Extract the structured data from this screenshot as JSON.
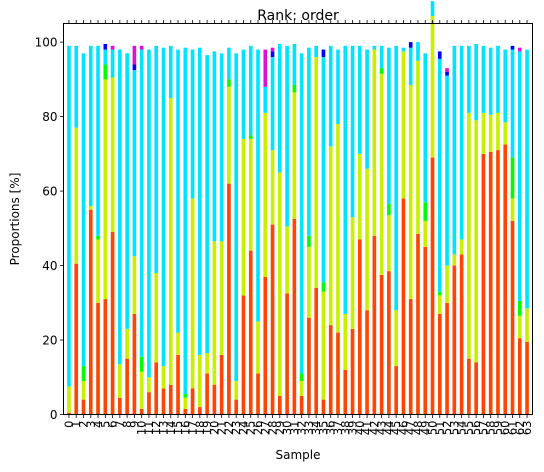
{
  "chart_data": {
    "type": "bar",
    "stacked": true,
    "title": "Rank: order",
    "xlabel": "Sample",
    "ylabel": "Proportions [%]",
    "ylim": [
      0,
      105
    ],
    "yticks": [
      "0",
      "20",
      "40",
      "60",
      "80",
      "100"
    ],
    "grid": false,
    "legend": "none",
    "categories": [
      "0",
      "1",
      "2",
      "3",
      "4",
      "5",
      "6",
      "7",
      "8",
      "9",
      "10",
      "11",
      "12",
      "13",
      "14",
      "15",
      "16",
      "17",
      "18",
      "19",
      "20",
      "21",
      "22",
      "23",
      "24",
      "25",
      "26",
      "27",
      "28",
      "29",
      "30",
      "31",
      "32",
      "33",
      "34",
      "35",
      "36",
      "37",
      "38",
      "39",
      "40",
      "41",
      "42",
      "43",
      "44",
      "45",
      "46",
      "47",
      "48",
      "49",
      "50",
      "51",
      "52",
      "53",
      "54",
      "55",
      "56",
      "57",
      "58",
      "59",
      "60",
      "61",
      "62",
      "63"
    ],
    "series": [
      {
        "color": "#ff4500",
        "values": [
          0.5,
          40.5,
          4,
          55,
          30,
          31,
          49,
          4.5,
          15,
          27,
          1.5,
          6,
          14,
          7,
          8,
          16,
          1.5,
          7,
          2,
          11,
          8,
          16,
          62,
          4,
          32,
          44,
          11,
          37,
          51,
          5,
          32.5,
          52.5,
          5,
          26,
          34,
          4,
          24,
          22,
          12,
          23,
          47,
          28,
          48,
          37.5,
          38.5,
          13,
          58,
          31,
          48.5,
          45,
          69,
          27,
          30,
          40,
          43,
          15,
          14,
          70,
          70.5,
          71,
          72.5,
          52,
          20.5,
          19.5
        ]
      },
      {
        "color": "#c8f000",
        "values": [
          7,
          36.5,
          5,
          1,
          17,
          59,
          41.5,
          9,
          8,
          15.5,
          10,
          4,
          24,
          6,
          77,
          6,
          3,
          51,
          14,
          5.5,
          38.5,
          30.5,
          26,
          5,
          42,
          30,
          14,
          44,
          20,
          60,
          18,
          34,
          4,
          19,
          62,
          29,
          48,
          56,
          15,
          30,
          23,
          38,
          50,
          54,
          15,
          15,
          39.5,
          57.5,
          46.5,
          7,
          38,
          5,
          10,
          3,
          4,
          66,
          65,
          11,
          10,
          10,
          6,
          6,
          6,
          9
        ]
      },
      {
        "color": "#00ff00",
        "values": [
          0,
          0,
          4,
          0,
          1,
          4,
          0,
          0,
          0,
          0,
          4,
          0,
          0,
          0,
          0,
          0,
          1,
          0,
          0,
          0,
          0,
          0,
          2,
          0,
          0,
          1,
          0,
          0,
          0,
          0,
          0,
          2,
          2,
          3,
          0,
          2.5,
          0,
          0,
          0,
          0,
          0,
          0,
          0,
          1.5,
          3,
          0,
          0,
          0,
          0,
          5,
          0,
          1,
          0,
          0,
          0,
          0,
          0,
          0,
          0,
          0,
          0,
          11,
          4,
          0
        ]
      },
      {
        "color": "#00e5ff",
        "values": [
          91.5,
          22,
          84,
          43,
          51,
          4,
          7.5,
          84.5,
          74,
          50,
          82.5,
          88,
          61,
          85.5,
          14,
          76,
          93,
          40,
          82.5,
          80,
          51,
          50.5,
          8.5,
          88,
          24,
          24,
          73,
          7,
          25,
          34.5,
          48.5,
          11,
          86,
          50.5,
          3,
          60.5,
          27,
          20,
          72,
          46,
          29,
          32,
          1,
          6,
          42,
          71,
          1,
          10,
          5,
          40,
          4,
          62.5,
          51,
          56,
          52,
          18,
          20.5,
          18,
          18,
          18,
          19.5,
          29,
          67,
          69.5
        ]
      },
      {
        "color": "#0000ff",
        "values": [
          0,
          0,
          0,
          0,
          0,
          1.5,
          0,
          0,
          0,
          1.5,
          0,
          0,
          0,
          0,
          0,
          0,
          0,
          0,
          0,
          0,
          0,
          0,
          0,
          0,
          0,
          0,
          0,
          0,
          1.5,
          0,
          0,
          0,
          0,
          0,
          0,
          2,
          0,
          0,
          0,
          0,
          0,
          0,
          0,
          0,
          0,
          0,
          0,
          1.5,
          0,
          0,
          0,
          2,
          1,
          0,
          0,
          0,
          0,
          0,
          0,
          0,
          0,
          1,
          0,
          0
        ]
      },
      {
        "color": "#e010d0",
        "values": [
          0,
          0,
          0,
          0,
          0,
          0,
          1,
          0,
          0,
          5,
          1,
          0,
          0,
          0,
          0,
          0,
          0,
          0,
          0,
          0,
          0,
          0,
          0,
          0,
          0,
          0,
          0,
          10,
          1,
          0,
          0,
          0,
          0,
          0,
          0,
          0,
          0,
          0,
          0,
          0,
          0,
          0,
          0,
          0,
          0,
          0,
          0,
          0,
          0,
          0,
          0,
          0,
          1,
          0,
          0,
          0,
          0,
          0,
          0,
          0,
          0,
          0,
          1,
          0
        ]
      }
    ]
  }
}
